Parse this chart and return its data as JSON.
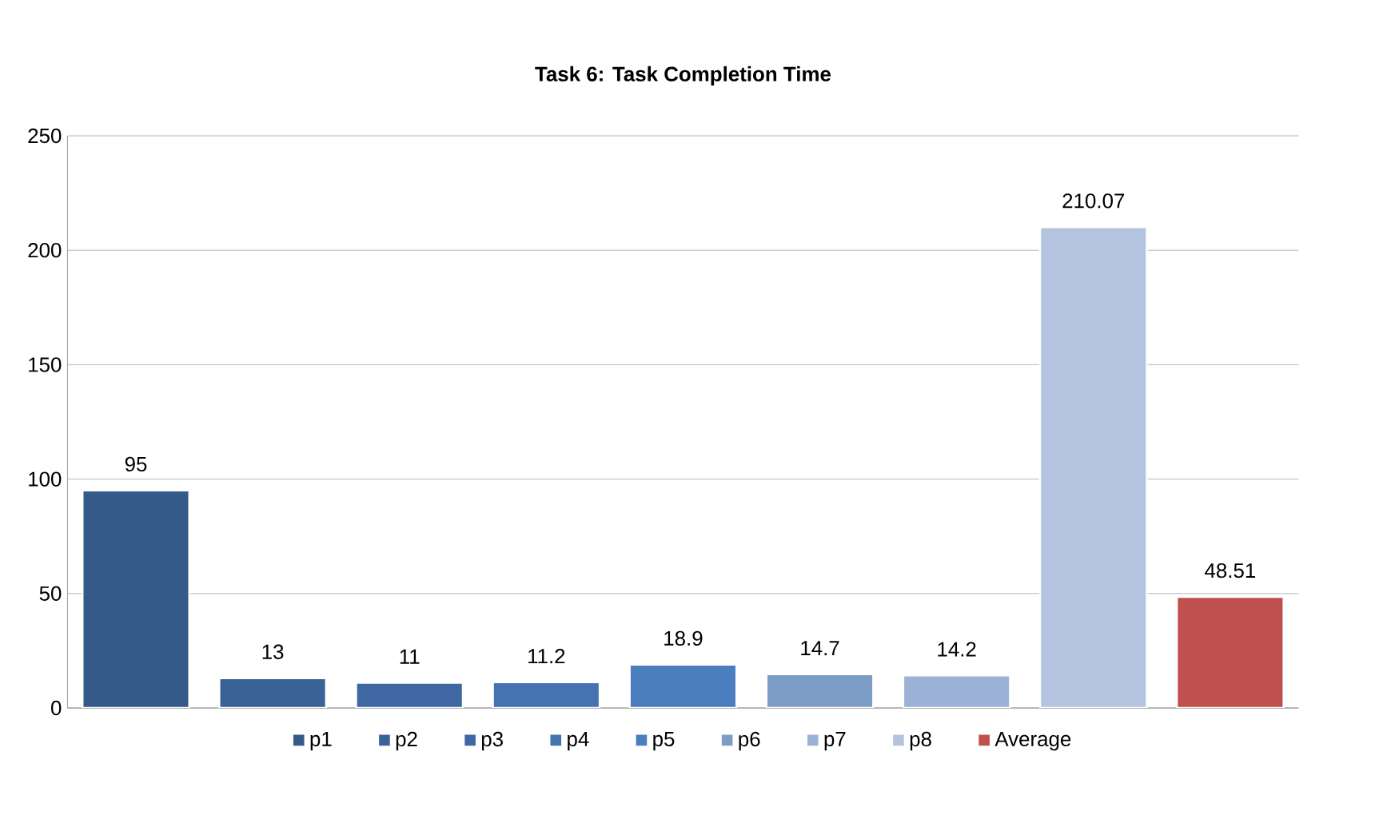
{
  "chart_data": {
    "type": "bar",
    "title": "Task 6: Task Completion Time",
    "categories": [
      null,
      null,
      null,
      null,
      null,
      null,
      null,
      null,
      null
    ],
    "series": [
      {
        "name": "p1",
        "color": "#335a88",
        "values": [
          95,
          null,
          null,
          null,
          null,
          null,
          null,
          null,
          null
        ]
      },
      {
        "name": "p2",
        "color": "#3a6296",
        "values": [
          null,
          13,
          null,
          null,
          null,
          null,
          null,
          null,
          null
        ]
      },
      {
        "name": "p3",
        "color": "#3f68a2",
        "values": [
          null,
          null,
          11,
          null,
          null,
          null,
          null,
          null,
          null
        ]
      },
      {
        "name": "p4",
        "color": "#4572b0",
        "values": [
          null,
          null,
          null,
          11.2,
          null,
          null,
          null,
          null,
          null
        ]
      },
      {
        "name": "p5",
        "color": "#4a7ebf",
        "values": [
          null,
          null,
          null,
          null,
          18.9,
          null,
          null,
          null,
          null
        ]
      },
      {
        "name": "p6",
        "color": "#7e9cc8",
        "values": [
          null,
          null,
          null,
          null,
          null,
          14.7,
          null,
          null,
          null
        ]
      },
      {
        "name": "p7",
        "color": "#9cb1d6",
        "values": [
          null,
          null,
          null,
          null,
          null,
          null,
          14.2,
          null,
          null
        ]
      },
      {
        "name": "p8",
        "color": "#b4c3de",
        "values": [
          null,
          null,
          null,
          null,
          null,
          null,
          null,
          210.07,
          null
        ]
      },
      {
        "name": "Average",
        "color": "#c0504d",
        "values": [
          null,
          null,
          null,
          null,
          null,
          null,
          null,
          null,
          48.51
        ]
      }
    ],
    "ylim": [
      0,
      250
    ],
    "yticks": [
      0,
      50,
      100,
      150,
      200,
      250
    ],
    "grid": "y",
    "legend": "bottom",
    "data_labels": true
  }
}
